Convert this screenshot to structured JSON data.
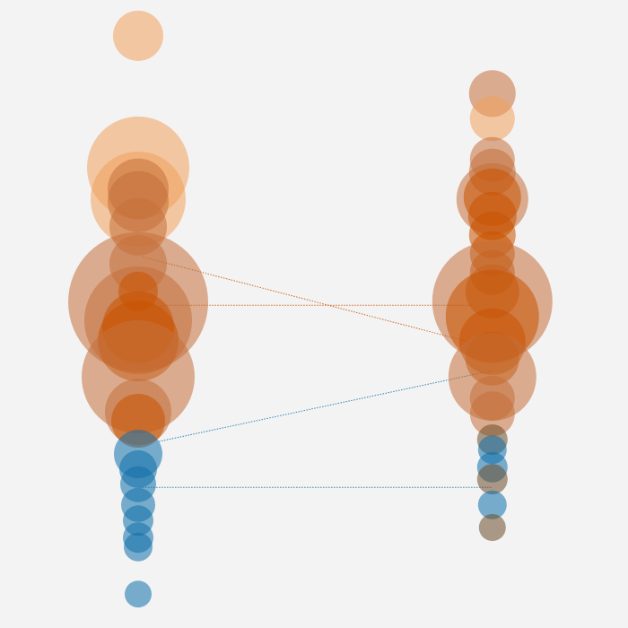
{
  "chart_data": {
    "type": "scatter",
    "title": "",
    "xlabel": "",
    "ylabel": "",
    "xlim": [
      0,
      1
    ],
    "ylim": [
      0,
      1
    ],
    "grid": false,
    "legend": "none",
    "colors": {
      "light_orange": "#f0a15c",
      "brown": "#c4703a",
      "dark_orange": "#c85200",
      "blue": "#1170aa",
      "dark_olive": "#6b4c2a"
    },
    "columns": [
      {
        "x": 0.22,
        "points": [
          {
            "y": 0.943,
            "r": 28,
            "color": "light_orange"
          },
          {
            "y": 0.733,
            "r": 57,
            "color": "light_orange"
          },
          {
            "y": 0.683,
            "r": 53,
            "color": "light_orange"
          },
          {
            "y": 0.699,
            "r": 34,
            "color": "brown"
          },
          {
            "y": 0.679,
            "r": 34,
            "color": "brown"
          },
          {
            "y": 0.639,
            "r": 32,
            "color": "brown"
          },
          {
            "y": 0.58,
            "r": 32,
            "color": "brown"
          },
          {
            "y": 0.519,
            "r": 78,
            "color": "brown"
          },
          {
            "y": 0.49,
            "r": 60,
            "color": "brown"
          },
          {
            "y": 0.536,
            "r": 22,
            "color": "dark_orange"
          },
          {
            "y": 0.479,
            "r": 40,
            "color": "dark_orange"
          },
          {
            "y": 0.457,
            "r": 45,
            "color": "dark_orange"
          },
          {
            "y": 0.4,
            "r": 63,
            "color": "brown"
          },
          {
            "y": 0.344,
            "r": 37,
            "color": "brown"
          },
          {
            "y": 0.33,
            "r": 30,
            "color": "dark_orange"
          },
          {
            "y": 0.277,
            "r": 27,
            "color": "blue"
          },
          {
            "y": 0.253,
            "r": 21,
            "color": "blue"
          },
          {
            "y": 0.229,
            "r": 20,
            "color": "blue"
          },
          {
            "y": 0.196,
            "r": 19,
            "color": "blue"
          },
          {
            "y": 0.171,
            "r": 17,
            "color": "blue"
          },
          {
            "y": 0.144,
            "r": 17,
            "color": "blue"
          },
          {
            "y": 0.129,
            "r": 16,
            "color": "blue"
          },
          {
            "y": 0.054,
            "r": 15,
            "color": "blue"
          }
        ]
      },
      {
        "x": 0.784,
        "points": [
          {
            "y": 0.851,
            "r": 26,
            "color": "brown"
          },
          {
            "y": 0.811,
            "r": 25,
            "color": "light_orange"
          },
          {
            "y": 0.746,
            "r": 25,
            "color": "brown"
          },
          {
            "y": 0.726,
            "r": 26,
            "color": "brown"
          },
          {
            "y": 0.683,
            "r": 40,
            "color": "brown"
          },
          {
            "y": 0.686,
            "r": 32,
            "color": "dark_orange"
          },
          {
            "y": 0.656,
            "r": 27,
            "color": "dark_orange"
          },
          {
            "y": 0.626,
            "r": 26,
            "color": "dark_orange"
          },
          {
            "y": 0.596,
            "r": 25,
            "color": "dark_orange"
          },
          {
            "y": 0.566,
            "r": 25,
            "color": "dark_orange"
          },
          {
            "y": 0.536,
            "r": 30,
            "color": "dark_orange"
          },
          {
            "y": 0.52,
            "r": 67,
            "color": "brown"
          },
          {
            "y": 0.496,
            "r": 52,
            "color": "dark_orange"
          },
          {
            "y": 0.456,
            "r": 37,
            "color": "dark_orange"
          },
          {
            "y": 0.429,
            "r": 30,
            "color": "dark_orange"
          },
          {
            "y": 0.4,
            "r": 49,
            "color": "brown"
          },
          {
            "y": 0.366,
            "r": 25,
            "color": "brown"
          },
          {
            "y": 0.341,
            "r": 25,
            "color": "brown"
          },
          {
            "y": 0.3,
            "r": 17,
            "color": "dark_olive"
          },
          {
            "y": 0.284,
            "r": 16,
            "color": "blue"
          },
          {
            "y": 0.256,
            "r": 17,
            "color": "blue"
          },
          {
            "y": 0.237,
            "r": 17,
            "color": "dark_olive"
          },
          {
            "y": 0.196,
            "r": 16,
            "color": "blue"
          },
          {
            "y": 0.16,
            "r": 15,
            "color": "dark_olive"
          }
        ]
      }
    ],
    "connectors": [
      {
        "x1": 0.227,
        "y1": 0.591,
        "x2": 0.784,
        "y2": 0.446,
        "color": "dark_orange"
      },
      {
        "x1": 0.256,
        "y1": 0.514,
        "x2": 0.754,
        "y2": 0.514,
        "color": "dark_orange"
      },
      {
        "x1": 0.253,
        "y1": 0.297,
        "x2": 0.784,
        "y2": 0.41,
        "color": "blue"
      },
      {
        "x1": 0.223,
        "y1": 0.224,
        "x2": 0.784,
        "y2": 0.224,
        "color": "blue"
      }
    ]
  }
}
